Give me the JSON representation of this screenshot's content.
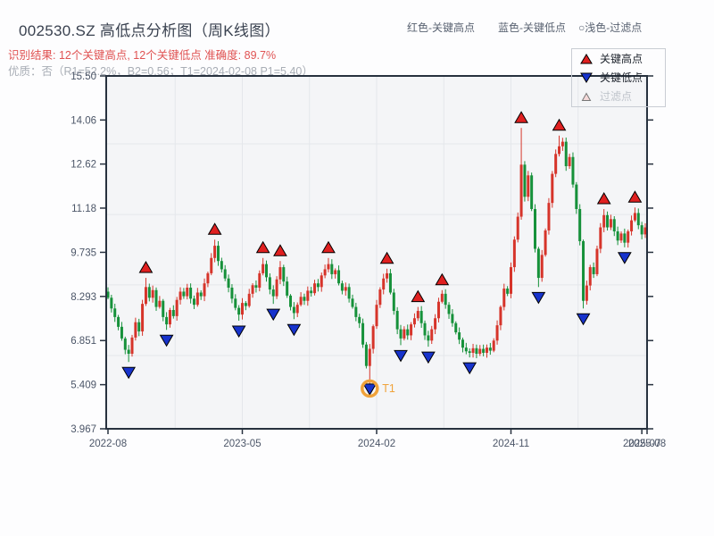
{
  "header": {
    "title": "002530.SZ 高低点分析图（周K线图）",
    "legend_note_high": "红色-关键高点",
    "legend_note_low": "蓝色-关键低点",
    "legend_note_filter": "○浅色-过滤点",
    "result_line": "识别结果: 12个关键高点, 12个关键低点  准确度: 89.7%",
    "quality_line": "优质：否（R1=52.2%，B2=0.56；T1=2024-02-08 P1=5.40）"
  },
  "legend": {
    "high_label": "关键高点",
    "low_label": "关键低点",
    "filter_label": "过滤点"
  },
  "colors": {
    "candle_up": "#d6342a",
    "candle_down": "#16913a",
    "key_high_marker": "#e02020",
    "key_low_marker": "#1733cc",
    "filter_marker_fill": "#f5d9d9",
    "t1_orange": "#f0a23a",
    "axis": "#27313e",
    "grid": "#e4e7eb",
    "plot_bg": "#f4f5f7",
    "tick_text": "#4c5668"
  },
  "chart_data": {
    "type": "candlestick",
    "title": "002530.SZ 高低点分析图（周K线图）",
    "frequency": "weekly",
    "ylim": [
      3.967,
      15.5
    ],
    "y_ticks": [
      {
        "value": 15.5,
        "label": "15.50"
      },
      {
        "value": 14.06,
        "label": "14.06"
      },
      {
        "value": 12.62,
        "label": "12.62"
      },
      {
        "value": 11.18,
        "label": "11.18"
      },
      {
        "value": 9.735,
        "label": "9.735"
      },
      {
        "value": 8.293,
        "label": "8.293"
      },
      {
        "value": 6.851,
        "label": "6.851"
      },
      {
        "value": 5.409,
        "label": "5.409"
      },
      {
        "value": 3.967,
        "label": "3.967"
      }
    ],
    "x_ticks": [
      {
        "week": 0,
        "label": "2022-08"
      },
      {
        "week": 39,
        "label": "2023-05"
      },
      {
        "week": 78,
        "label": "2024-02"
      },
      {
        "week": 117,
        "label": "2024-11"
      },
      {
        "week": 155,
        "label": "2025-07"
      },
      {
        "week": 157,
        "label": "2025-08"
      }
    ],
    "h_grid_prices": [
      13.28,
      10.97,
      8.67,
      6.36
    ],
    "v_grid_weeks": [
      19.5,
      39,
      58.5,
      78,
      97.5,
      117,
      136.5,
      156
    ],
    "first_open": 8.45,
    "weekly_close": [
      8.25,
      7.9,
      7.62,
      7.3,
      6.92,
      6.55,
      6.42,
      6.95,
      7.45,
      7.15,
      8.05,
      8.6,
      8.25,
      8.5,
      7.95,
      8.15,
      7.62,
      7.38,
      7.85,
      7.65,
      8.18,
      8.45,
      8.3,
      8.58,
      8.22,
      8.02,
      8.42,
      8.3,
      8.72,
      9.05,
      9.55,
      9.95,
      9.45,
      9.18,
      8.88,
      8.58,
      8.22,
      7.92,
      7.7,
      8.08,
      7.98,
      8.38,
      8.66,
      8.58,
      9.05,
      9.35,
      8.92,
      8.52,
      8.3,
      8.85,
      9.25,
      8.78,
      8.32,
      7.95,
      7.75,
      8.02,
      8.28,
      8.15,
      8.48,
      8.4,
      8.72,
      8.6,
      8.98,
      9.18,
      9.35,
      9.02,
      9.15,
      8.72,
      8.48,
      8.6,
      8.22,
      7.95,
      7.62,
      7.42,
      6.72,
      6.02,
      6.58,
      7.32,
      8.02,
      8.52,
      8.88,
      9.05,
      8.42,
      7.82,
      7.22,
      6.92,
      7.22,
      7.02,
      7.38,
      7.58,
      7.82,
      7.42,
      7.02,
      6.85,
      7.22,
      7.58,
      8.12,
      8.38,
      8.02,
      7.72,
      7.42,
      7.12,
      6.88,
      6.62,
      6.5,
      6.45,
      6.6,
      6.42,
      6.58,
      6.45,
      6.62,
      6.52,
      6.85,
      7.35,
      7.95,
      8.55,
      8.38,
      9.25,
      10.15,
      10.9,
      12.6,
      11.55,
      12.25,
      11.15,
      9.85,
      8.9,
      9.65,
      10.45,
      11.35,
      12.3,
      12.95,
      13.2,
      13.35,
      12.55,
      12.85,
      11.95,
      11.15,
      10.1,
      8.15,
      8.65,
      9.25,
      9.02,
      9.85,
      10.55,
      10.95,
      10.55,
      10.82,
      10.42,
      10.12,
      10.35,
      10.05,
      10.42,
      10.78,
      11.02,
      10.62,
      10.32,
      10.55
    ],
    "key_highs": [
      {
        "week": 11,
        "price": 8.9
      },
      {
        "week": 31,
        "price": 10.15
      },
      {
        "week": 45,
        "price": 9.55
      },
      {
        "week": 50,
        "price": 9.45
      },
      {
        "week": 64,
        "price": 9.55
      },
      {
        "week": 81,
        "price": 9.2
      },
      {
        "week": 90,
        "price": 7.95
      },
      {
        "week": 97,
        "price": 8.5
      },
      {
        "week": 120,
        "price": 13.8
      },
      {
        "week": 131,
        "price": 13.55
      },
      {
        "week": 144,
        "price": 11.15
      },
      {
        "week": 153,
        "price": 11.2
      }
    ],
    "key_lows": [
      {
        "week": 6,
        "price": 6.15
      },
      {
        "week": 17,
        "price": 7.2
      },
      {
        "week": 38,
        "price": 7.5
      },
      {
        "week": 48,
        "price": 8.05
      },
      {
        "week": 54,
        "price": 7.55
      },
      {
        "week": 76,
        "price": 5.4
      },
      {
        "week": 85,
        "price": 6.7
      },
      {
        "week": 93,
        "price": 6.65
      },
      {
        "week": 105,
        "price": 6.3
      },
      {
        "week": 125,
        "price": 8.6
      },
      {
        "week": 138,
        "price": 7.9
      },
      {
        "week": 150,
        "price": 9.9
      }
    ],
    "t1": {
      "week": 76,
      "price": 5.4,
      "label": "T1",
      "date": "2024-02-08"
    }
  }
}
